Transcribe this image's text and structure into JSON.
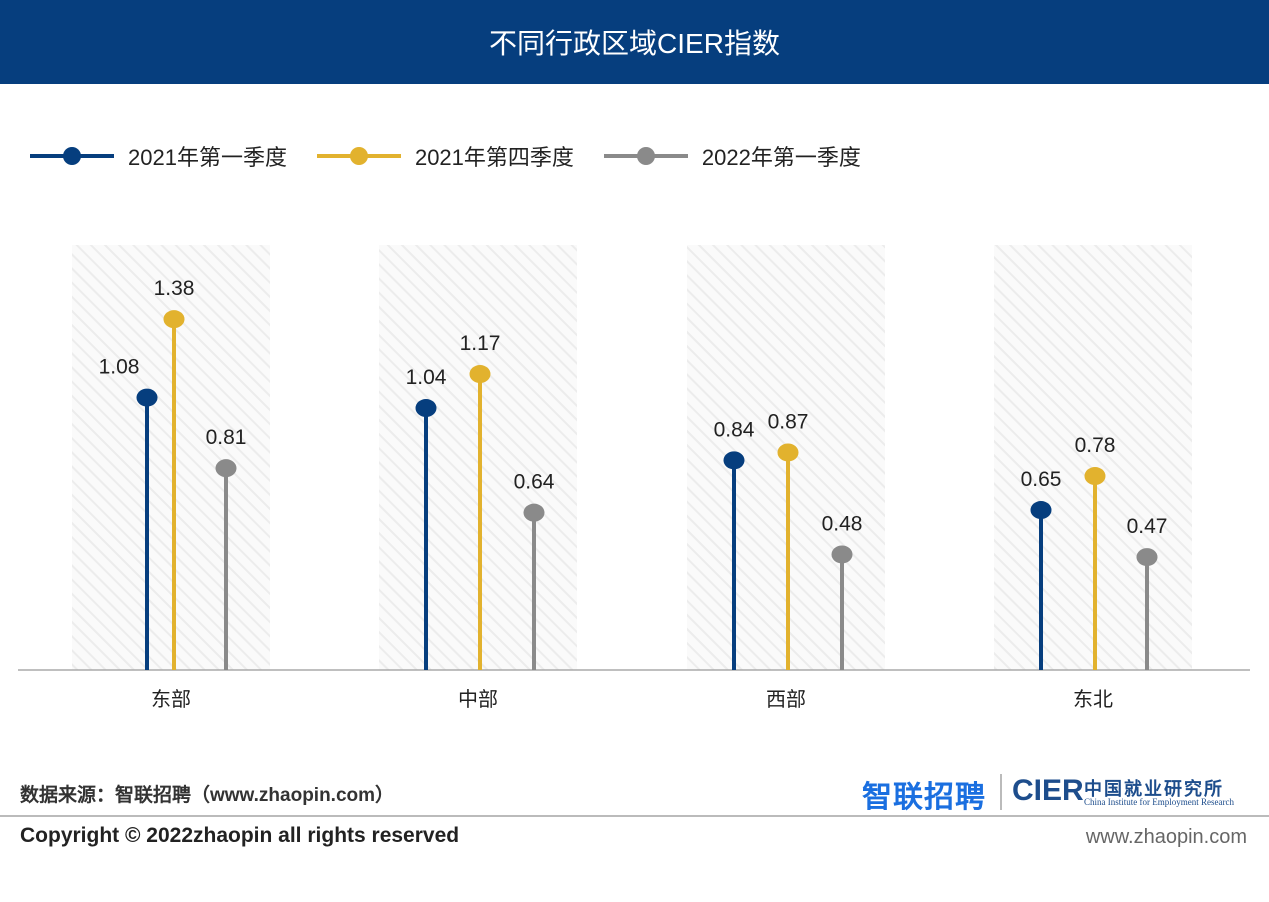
{
  "header": {
    "title": "不同行政区域CIER指数"
  },
  "chart_data": {
    "type": "lollipop",
    "title": "不同行政区域CIER指数",
    "categories": [
      "东部",
      "中部",
      "西部",
      "东北"
    ],
    "series": [
      {
        "name": "2021年第一季度",
        "color": "#063e7e",
        "values": [
          1.08,
          1.04,
          0.84,
          0.65
        ]
      },
      {
        "name": "2021年第四季度",
        "color": "#e2b22e",
        "values": [
          1.38,
          1.17,
          0.87,
          0.78
        ]
      },
      {
        "name": "2022年第一季度",
        "color": "#8a8a8a",
        "values": [
          0.81,
          0.64,
          0.48,
          0.47
        ]
      }
    ],
    "legend_position": "top-left",
    "grid": false
  },
  "footer": {
    "source": "数据来源：智联招聘（www.zhaopin.com）",
    "copyright": "Copyright ©  2022zhaopin all rights reserved",
    "url": "www.zhaopin.com",
    "logo_zhaopin": "智联招聘",
    "logo_cier": "CIER",
    "logo_cier_cn": "中国就业研究所",
    "logo_cier_en": "China Institute for Employment Research"
  }
}
